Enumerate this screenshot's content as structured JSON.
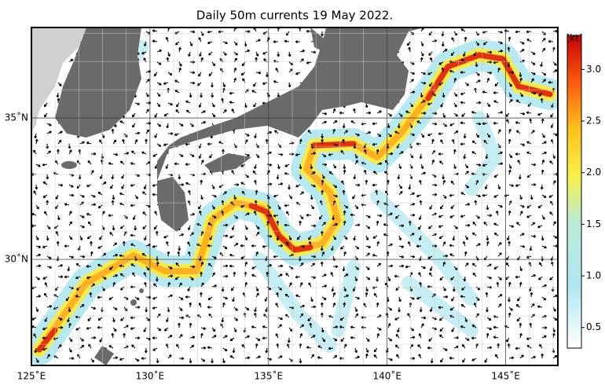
{
  "title": "Daily 50m currents 19 May 2022.",
  "map": {
    "lonlim": [
      125,
      147.2
    ],
    "latlim": [
      26.25,
      38.2
    ],
    "lonticks": [
      {
        "value": 125,
        "label": "125˚E"
      },
      {
        "value": 130,
        "label": "130˚E"
      },
      {
        "value": 135,
        "label": "135˚E"
      },
      {
        "value": 140,
        "label": "140˚E"
      },
      {
        "value": 145,
        "label": "145˚E"
      }
    ],
    "latticks": [
      {
        "value": 30,
        "label": "30˚N"
      },
      {
        "value": 35,
        "label": "35˚N"
      }
    ]
  },
  "colorbar": {
    "unit": "[kt]",
    "lim": [
      0.3,
      3.33
    ],
    "ticks": [
      0.5,
      {
        "value": 1,
        "label": "1.0"
      },
      1.5,
      {
        "value": 2,
        "label": "2.0"
      },
      2.5,
      {
        "value": 3,
        "label": "3.0"
      }
    ]
  }
}
